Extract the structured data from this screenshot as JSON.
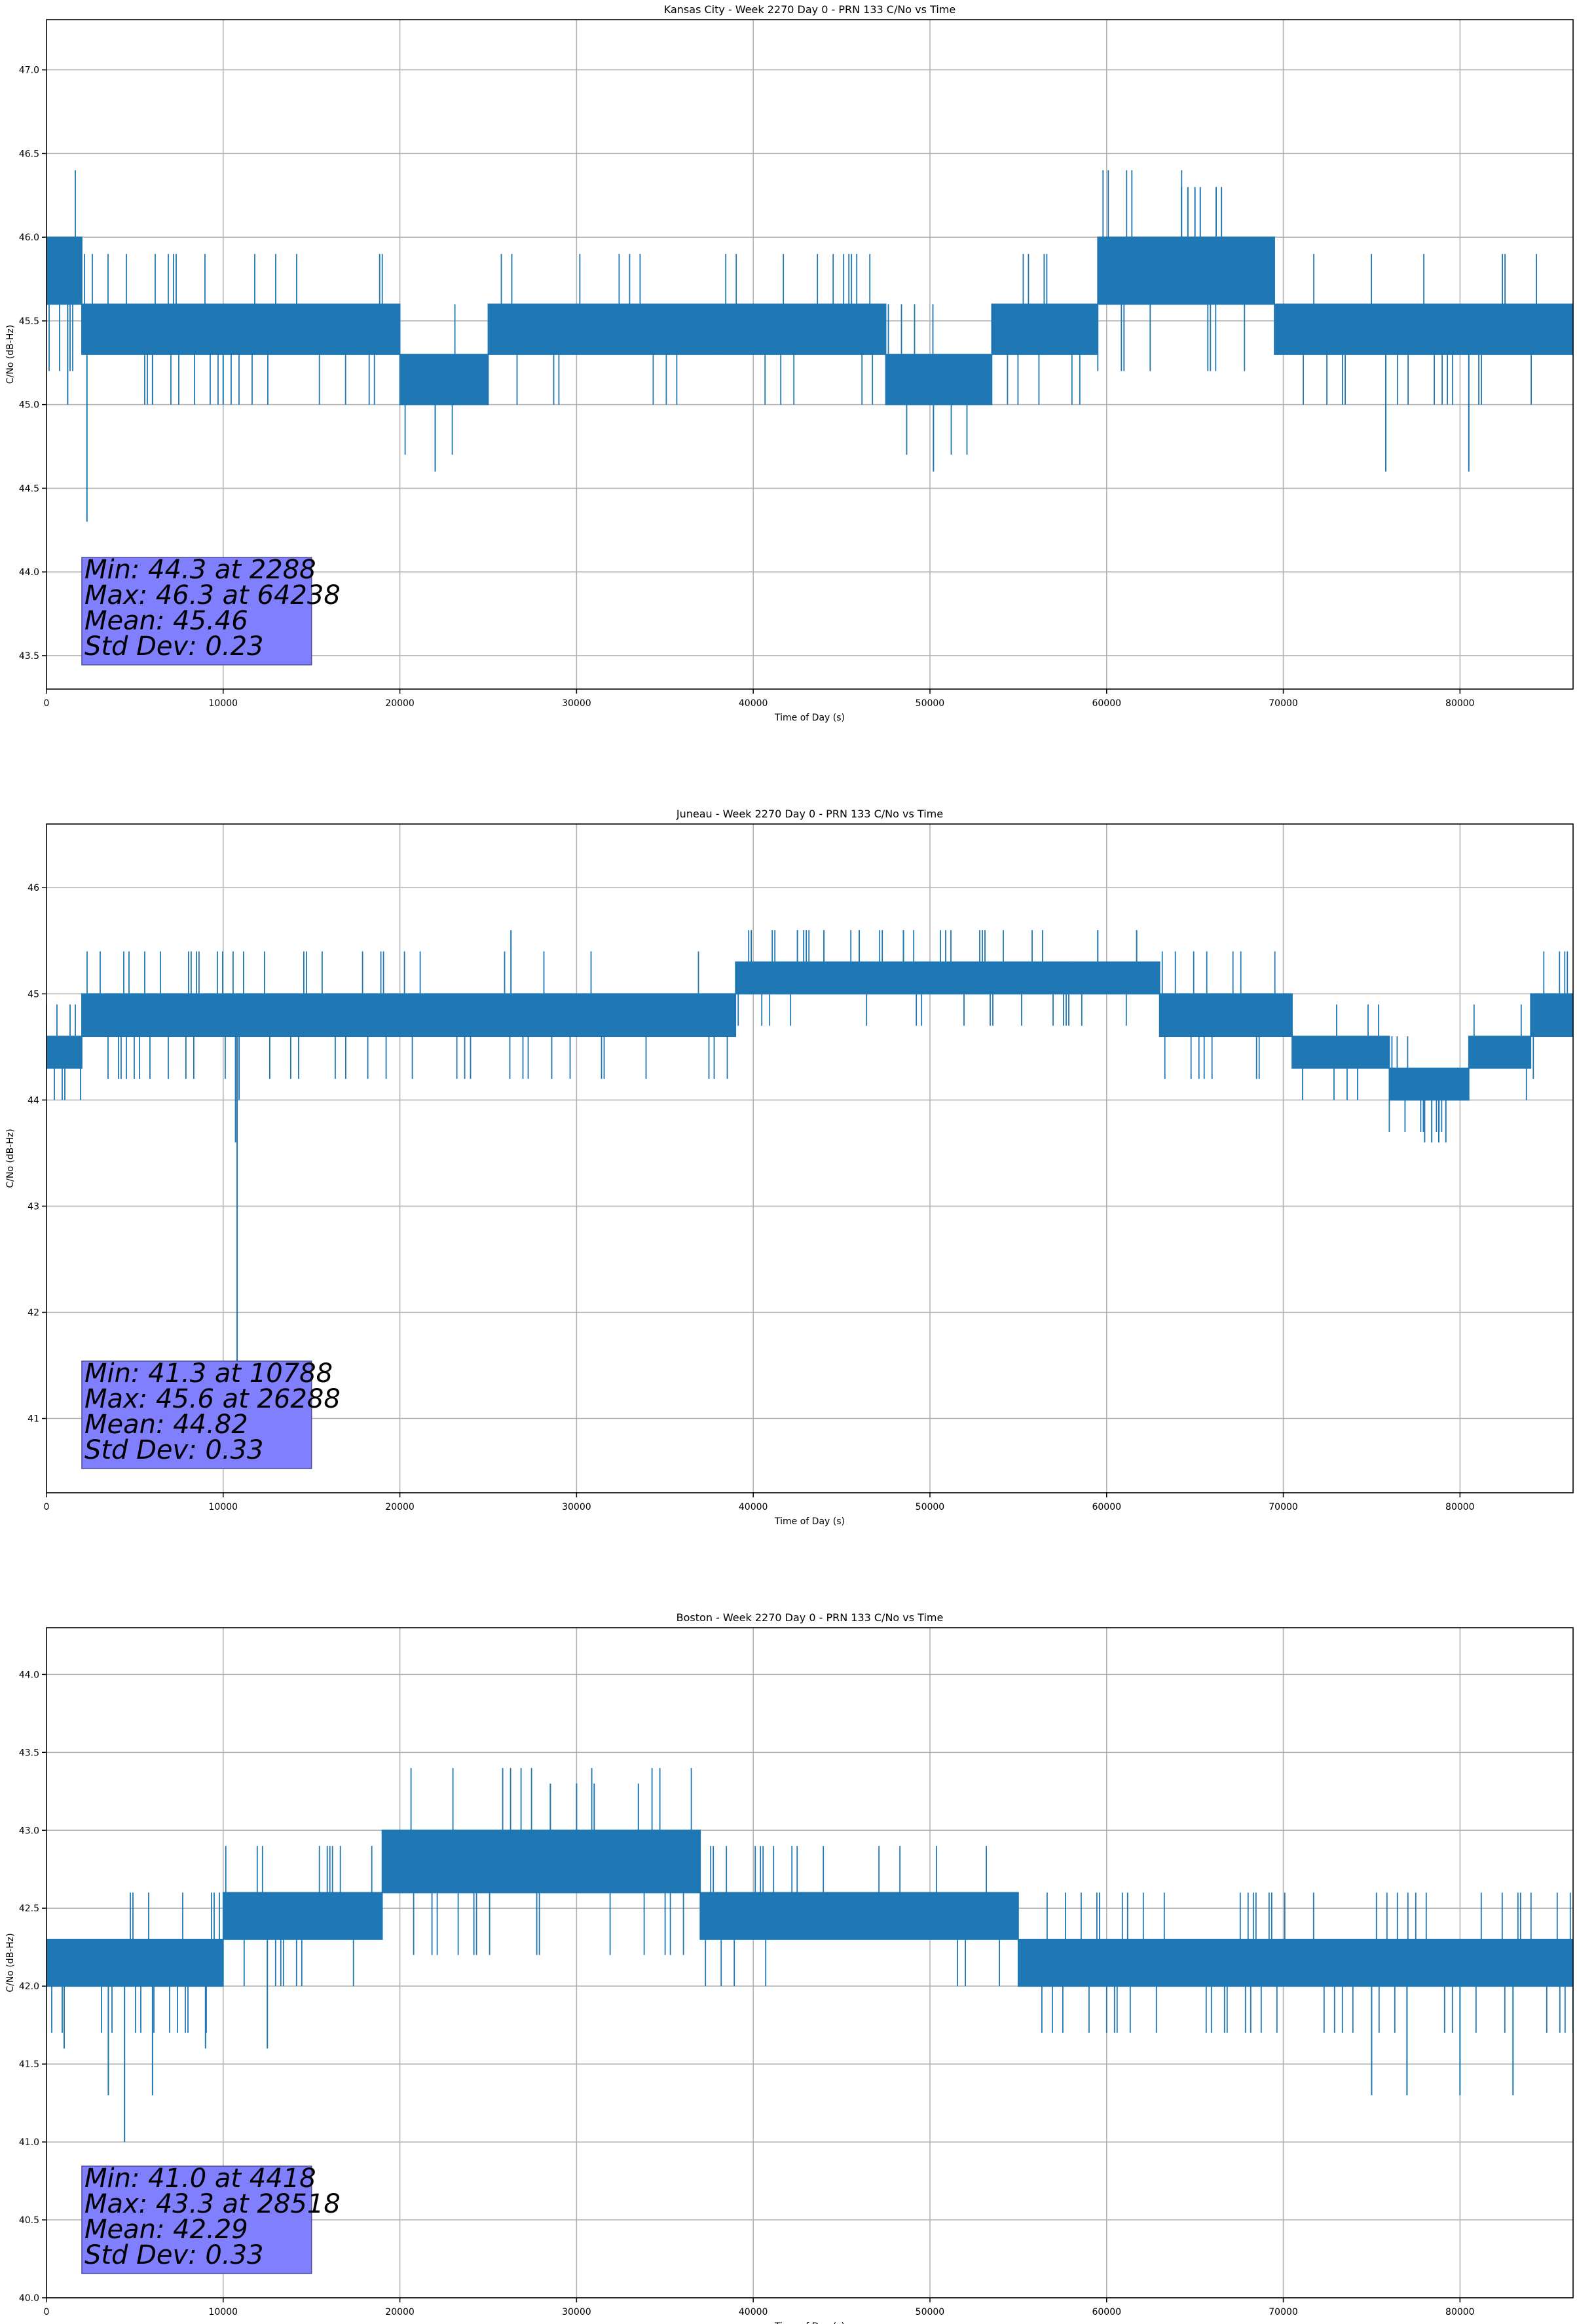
{
  "figure": {
    "colors": {
      "line": "#1f77b4",
      "grid": "#b0b0b0",
      "axes": "#000000",
      "box_face": "#8080ff",
      "box_edge": "#4d4d99"
    }
  },
  "chart_data": [
    {
      "type": "line",
      "title": "Kansas City - Week 2270 Day 0 - PRN 133 C/No vs Time",
      "xlabel": "Time of Day (s)",
      "ylabel": "C/No (dB-Hz)",
      "xlim": [
        0,
        86400
      ],
      "ylim": [
        43.3,
        47.3
      ],
      "xticks": [
        0,
        10000,
        20000,
        30000,
        40000,
        50000,
        60000,
        70000,
        80000
      ],
      "xtick_labels": [
        "0",
        "10000",
        "20000",
        "30000",
        "40000",
        "50000",
        "60000",
        "70000",
        "80000"
      ],
      "yticks": [
        43.5,
        44.0,
        44.5,
        45.0,
        45.5,
        46.0,
        46.5,
        47.0
      ],
      "ytick_labels": [
        "43.5",
        "44.0",
        "44.5",
        "45.0",
        "45.5",
        "46.0",
        "46.5",
        "47.0"
      ],
      "grid": true,
      "stats": {
        "min": "Min: 44.3 at 2288",
        "max": "Max: 46.3 at 64238",
        "mean": "Mean: 45.46",
        "std": "Std Dev: 0.23"
      },
      "series": [
        {
          "segments": [
            [
              0,
              2000,
              45.6,
              46.0,
              0.35
            ],
            [
              2000,
              15000,
              45.3,
              45.6,
              0.3
            ],
            [
              15000,
              20000,
              45.3,
              45.6,
              0.15
            ],
            [
              20000,
              25000,
              45.0,
              45.3,
              0.2
            ],
            [
              25000,
              29000,
              45.3,
              45.6,
              0.2
            ],
            [
              29000,
              38000,
              45.3,
              45.6,
              0.15
            ],
            [
              38000,
              47500,
              45.3,
              45.6,
              0.2
            ],
            [
              47500,
              53500,
              45.0,
              45.3,
              0.2
            ],
            [
              53500,
              57000,
              45.3,
              45.6,
              0.25
            ],
            [
              57000,
              59500,
              45.3,
              45.6,
              0.2
            ],
            [
              59500,
              69500,
              45.6,
              46.0,
              0.15
            ],
            [
              69500,
              86400,
              45.3,
              45.6,
              0.25
            ]
          ],
          "spikes": [
            [
              2288,
              44.3
            ],
            [
              22000,
              44.6
            ],
            [
              50200,
              44.6
            ],
            [
              75800,
              44.6
            ],
            [
              80500,
              44.6
            ],
            [
              64238,
              46.3
            ],
            [
              64600,
              46.3
            ],
            [
              65000,
              46.3
            ],
            [
              65300,
              46.3
            ],
            [
              66200,
              46.3
            ],
            [
              66500,
              46.3
            ],
            [
              10000,
              45.0
            ],
            [
              1200,
              45.0
            ],
            [
              6000,
              45.0
            ]
          ]
        }
      ]
    },
    {
      "type": "line",
      "title": "Juneau - Week 2270 Day 0 - PRN 133 C/No vs Time",
      "xlabel": "Time of Day (s)",
      "ylabel": "C/No (dB-Hz)",
      "xlim": [
        0,
        86400
      ],
      "ylim": [
        40.3,
        46.6
      ],
      "xticks": [
        0,
        10000,
        20000,
        30000,
        40000,
        50000,
        60000,
        70000,
        80000
      ],
      "xtick_labels": [
        "0",
        "10000",
        "20000",
        "30000",
        "40000",
        "50000",
        "60000",
        "70000",
        "80000"
      ],
      "yticks": [
        41,
        42,
        43,
        44,
        45,
        46
      ],
      "ytick_labels": [
        "41",
        "42",
        "43",
        "44",
        "45",
        "46"
      ],
      "grid": true,
      "stats": {
        "min": "Min: 41.3 at 10788",
        "max": "Max: 45.6 at 26288",
        "mean": "Mean: 44.82",
        "std": "Std Dev: 0.33"
      },
      "series": [
        {
          "segments": [
            [
              0,
              2000,
              44.3,
              44.6,
              0.35
            ],
            [
              2000,
              7000,
              44.6,
              45.0,
              0.3
            ],
            [
              7000,
              17000,
              44.6,
              45.0,
              0.25
            ],
            [
              17000,
              24000,
              44.6,
              45.0,
              0.2
            ],
            [
              24000,
              39000,
              44.6,
              45.0,
              0.2
            ],
            [
              39000,
              50000,
              45.0,
              45.3,
              0.25
            ],
            [
              50000,
              58000,
              45.0,
              45.3,
              0.25
            ],
            [
              58000,
              63000,
              45.0,
              45.3,
              0.15
            ],
            [
              63000,
              70500,
              44.6,
              45.0,
              0.15
            ],
            [
              70500,
              76000,
              44.3,
              44.6,
              0.25
            ],
            [
              76000,
              80500,
              44.0,
              44.3,
              0.25
            ],
            [
              80500,
              84000,
              44.3,
              44.6,
              0.25
            ],
            [
              84000,
              86400,
              44.6,
              45.0,
              0.3
            ]
          ],
          "spikes": [
            [
              10788,
              41.3
            ],
            [
              10700,
              43.6
            ],
            [
              10900,
              44.0
            ],
            [
              26288,
              45.6
            ],
            [
              42500,
              45.6
            ],
            [
              44000,
              45.6
            ],
            [
              46000,
              45.6
            ],
            [
              48500,
              45.6
            ],
            [
              59500,
              45.6
            ],
            [
              61700,
              45.6
            ],
            [
              78000,
              43.6
            ],
            [
              78400,
              43.6
            ],
            [
              78800,
              43.6
            ],
            [
              79200,
              43.6
            ]
          ]
        }
      ]
    },
    {
      "type": "line",
      "title": "Boston - Week 2270 Day 0 - PRN 133 C/No vs Time",
      "xlabel": "Time of Day (s)",
      "ylabel": "C/No (dB-Hz)",
      "xlim": [
        0,
        86400
      ],
      "ylim": [
        40.0,
        44.3
      ],
      "xticks": [
        0,
        10000,
        20000,
        30000,
        40000,
        50000,
        60000,
        70000,
        80000
      ],
      "xtick_labels": [
        "0",
        "10000",
        "20000",
        "30000",
        "40000",
        "50000",
        "60000",
        "70000",
        "80000"
      ],
      "yticks": [
        40.0,
        40.5,
        41.0,
        41.5,
        42.0,
        42.5,
        43.0,
        43.5,
        44.0
      ],
      "ytick_labels": [
        "40.0",
        "40.5",
        "41.0",
        "41.5",
        "42.0",
        "42.5",
        "43.0",
        "43.5",
        "44.0"
      ],
      "grid": true,
      "stats": {
        "min": "Min: 41.0 at 4418",
        "max": "Max: 43.3 at 28518",
        "mean": "Mean: 42.29",
        "std": "Std Dev: 0.33"
      },
      "series": [
        {
          "segments": [
            [
              0,
              10000,
              42.0,
              42.3,
              0.3
            ],
            [
              10000,
              15000,
              42.3,
              42.6,
              0.2
            ],
            [
              15000,
              19000,
              42.3,
              42.6,
              0.2
            ],
            [
              19000,
              37000,
              42.6,
              43.0,
              0.15
            ],
            [
              37000,
              44000,
              42.3,
              42.6,
              0.25
            ],
            [
              44000,
              55000,
              42.3,
              42.6,
              0.15
            ],
            [
              55000,
              60000,
              42.0,
              42.3,
              0.25
            ],
            [
              60000,
              86400,
              42.0,
              42.3,
              0.3
            ]
          ],
          "spikes": [
            [
              4418,
              41.0
            ],
            [
              3500,
              41.3
            ],
            [
              6000,
              41.3
            ],
            [
              28518,
              43.3
            ],
            [
              30000,
              43.3
            ],
            [
              31000,
              43.3
            ],
            [
              33500,
              43.3
            ],
            [
              75000,
              41.3
            ],
            [
              77000,
              41.3
            ],
            [
              80000,
              41.3
            ],
            [
              83000,
              41.3
            ],
            [
              1000,
              41.6
            ],
            [
              9000,
              41.6
            ],
            [
              12500,
              41.6
            ]
          ]
        }
      ]
    }
  ]
}
